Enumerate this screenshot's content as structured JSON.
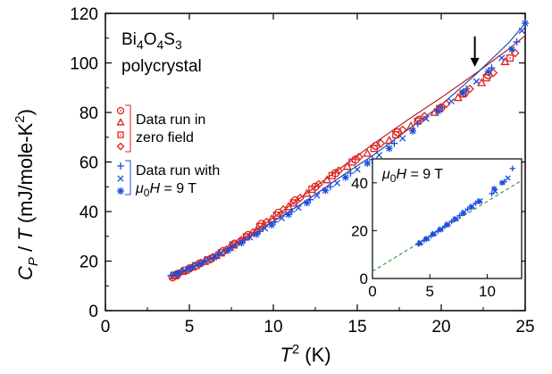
{
  "chart_data": [
    {
      "type": "scatter",
      "xlabel": "T 2 (K)",
      "ylabel": "CP / T (mJ/mole-K2)",
      "xlim": [
        0,
        25
      ],
      "ylim": [
        0,
        120
      ],
      "xticks": [
        0,
        5,
        10,
        15,
        20,
        25
      ],
      "yticks": [
        0,
        20,
        40,
        60,
        80,
        100,
        120
      ],
      "annotation_text": {
        "formula_base": "Bi",
        "formula_sub1": "4",
        "formula_mid": "O",
        "formula_sub2": "4",
        "formula_end": "S",
        "formula_sub3": "3",
        "second_line": "polycrystal"
      },
      "arrow_at": {
        "x": 22.0,
        "y": 97
      },
      "legend": {
        "zero_field_label_line1": "Data run in",
        "zero_field_label_line2": "zero field",
        "field_label_line1": "Data run with",
        "field_label_mu": "μ",
        "field_label_sub": "0",
        "field_label_H": "H",
        "field_label_value": " = 9 T"
      },
      "series": [
        {
          "color": "#e0201a",
          "marker": "circle",
          "x": [
            4.0,
            4.3,
            5.0,
            5.6,
            6.3,
            7.0,
            7.7,
            8.5,
            9.3,
            10.3,
            11.3,
            12.5,
            13.7,
            14.9,
            16.1,
            17.4,
            18.7,
            20.0,
            21.4,
            22.8
          ],
          "values": [
            13.5,
            14.8,
            17.0,
            19.0,
            21.0,
            24.0,
            27.0,
            30.5,
            35.0,
            39.5,
            44.5,
            50.0,
            55.5,
            61.0,
            66.5,
            72.0,
            77.0,
            82.0,
            88.0,
            95.0
          ]
        },
        {
          "color": "#e0201a",
          "marker": "triangle",
          "x": [
            4.1,
            4.6,
            5.2,
            5.9,
            6.6,
            7.4,
            8.1,
            9.0,
            9.9,
            10.9,
            12.0,
            13.2,
            14.4,
            15.6,
            16.9,
            18.2,
            19.6,
            21.0,
            22.4,
            23.8
          ],
          "values": [
            14.0,
            15.8,
            17.6,
            19.8,
            22.3,
            25.5,
            28.5,
            32.5,
            37.0,
            42.0,
            47.3,
            52.8,
            58.2,
            63.5,
            68.7,
            74.5,
            80.0,
            86.0,
            92.0,
            100.5
          ]
        },
        {
          "color": "#e0201a",
          "marker": "square",
          "x": [
            4.2,
            4.8,
            5.4,
            6.1,
            6.9,
            7.6,
            8.4,
            9.2,
            10.2,
            11.2,
            12.3,
            13.5,
            14.7,
            16.0,
            17.3,
            18.6,
            19.9,
            21.3,
            22.7,
            24.1
          ],
          "values": [
            14.3,
            16.3,
            18.2,
            20.5,
            23.3,
            26.5,
            29.8,
            34.0,
            38.5,
            43.5,
            49.0,
            54.5,
            60.0,
            65.5,
            71.0,
            76.5,
            81.5,
            87.5,
            94.0,
            102.0
          ]
        },
        {
          "color": "#e0201a",
          "marker": "diamond",
          "x": [
            4.4,
            5.1,
            5.7,
            6.4,
            7.2,
            8.0,
            8.8,
            9.6,
            10.6,
            11.6,
            12.7,
            13.9,
            15.1,
            16.4,
            17.7,
            19.0,
            20.3,
            21.7,
            23.1,
            24.4
          ],
          "values": [
            15.0,
            17.2,
            19.3,
            21.6,
            24.6,
            28.0,
            31.6,
            35.8,
            40.8,
            45.5,
            51.0,
            56.5,
            62.0,
            67.5,
            73.0,
            78.5,
            83.5,
            89.5,
            96.0,
            104.0
          ]
        },
        {
          "color": "#1a4ee0",
          "marker": "plus",
          "x": [
            3.9,
            4.5,
            5.2,
            5.9,
            6.7,
            7.5,
            8.3,
            9.2,
            10.1,
            11.1,
            12.2,
            13.4,
            14.6,
            15.9,
            17.2,
            18.6,
            20.0,
            21.5,
            23.0,
            24.5
          ],
          "values": [
            14.2,
            15.8,
            17.8,
            20.0,
            22.6,
            25.5,
            28.5,
            32.0,
            35.8,
            40.0,
            44.8,
            50.0,
            55.5,
            61.0,
            67.5,
            75.5,
            82.0,
            89.5,
            98.0,
            108.5
          ]
        },
        {
          "color": "#1a4ee0",
          "marker": "x",
          "x": [
            4.1,
            4.7,
            5.4,
            6.1,
            6.9,
            7.7,
            8.6,
            9.5,
            10.5,
            11.5,
            12.6,
            13.8,
            15.0,
            16.3,
            17.7,
            19.1,
            20.6,
            22.1,
            23.6,
            24.8
          ],
          "values": [
            14.6,
            16.3,
            18.4,
            20.6,
            23.3,
            26.3,
            29.6,
            33.2,
            37.3,
            41.5,
            46.5,
            51.5,
            57.0,
            62.8,
            69.5,
            77.5,
            84.5,
            92.5,
            102.0,
            113.0
          ]
        },
        {
          "color": "#1a4ee0",
          "marker": "asterisk",
          "x": [
            4.3,
            5.0,
            5.7,
            6.5,
            7.3,
            8.1,
            9.0,
            9.9,
            10.9,
            12.0,
            13.1,
            14.3,
            15.6,
            16.9,
            18.3,
            19.8,
            21.3,
            22.8,
            24.2,
            25.0
          ],
          "values": [
            15.0,
            17.0,
            19.0,
            21.5,
            24.3,
            27.3,
            30.8,
            34.6,
            38.8,
            43.5,
            48.5,
            53.8,
            59.5,
            65.5,
            72.5,
            80.5,
            88.0,
            96.5,
            105.5,
            116.0
          ]
        }
      ],
      "fit_lines": [
        {
          "color": "#b01010",
          "x": [
            4.0,
            6.0,
            8.0,
            10.0,
            12.0,
            14.0,
            16.0,
            18.0,
            20.0,
            22.0,
            24.0,
            25.0
          ],
          "values": [
            13.5,
            20.0,
            28.0,
            37.5,
            47.5,
            57.5,
            67.5,
            77.0,
            86.0,
            95.5,
            105.5,
            111.0
          ]
        },
        {
          "color": "#1a3aa0",
          "x": [
            4.0,
            6.0,
            8.0,
            10.0,
            12.0,
            14.0,
            16.0,
            18.0,
            20.0,
            22.0,
            24.0,
            25.0
          ],
          "values": [
            14.2,
            20.0,
            27.5,
            36.0,
            44.5,
            54.0,
            63.0,
            73.0,
            83.0,
            95.0,
            108.0,
            116.0
          ]
        }
      ]
    },
    {
      "type": "scatter",
      "xlim": [
        0,
        13
      ],
      "ylim": [
        0,
        50
      ],
      "xticks": [
        0,
        5,
        10
      ],
      "yticks": [
        0,
        20,
        40
      ],
      "annotation": {
        "mu": "μ",
        "sub": "0",
        "H": "H",
        "value": " = 9 T"
      },
      "series": [
        {
          "color": "#1a4ee0",
          "marker": "plus",
          "x": [
            4.0,
            4.5,
            5.1,
            5.7,
            6.3,
            6.9,
            7.6,
            8.3,
            9.0,
            10.4,
            11.5,
            12.2
          ],
          "values": [
            14.5,
            16.0,
            17.8,
            19.8,
            21.8,
            23.9,
            26.3,
            29.0,
            31.5,
            35.5,
            40.5,
            46.0
          ]
        },
        {
          "color": "#1a4ee0",
          "marker": "x",
          "x": [
            4.2,
            4.8,
            5.4,
            6.0,
            6.6,
            7.3,
            8.0,
            8.7,
            9.4,
            10.7,
            11.8
          ],
          "values": [
            15.0,
            16.8,
            18.8,
            20.7,
            22.8,
            25.0,
            27.8,
            30.2,
            32.5,
            36.5,
            42.0
          ]
        },
        {
          "color": "#1a4ee0",
          "marker": "asterisk",
          "x": [
            4.1,
            4.7,
            5.3,
            5.9,
            6.5,
            7.2,
            7.9,
            8.6,
            9.3,
            10.6,
            11.3
          ],
          "values": [
            14.7,
            16.5,
            18.5,
            20.4,
            22.4,
            24.8,
            27.3,
            29.8,
            32.2,
            37.5,
            40.0
          ]
        }
      ],
      "fit_line": {
        "color": "#3a9a3a",
        "style": "dashed",
        "x": [
          0,
          13
        ],
        "values": [
          3,
          41
        ]
      }
    }
  ]
}
